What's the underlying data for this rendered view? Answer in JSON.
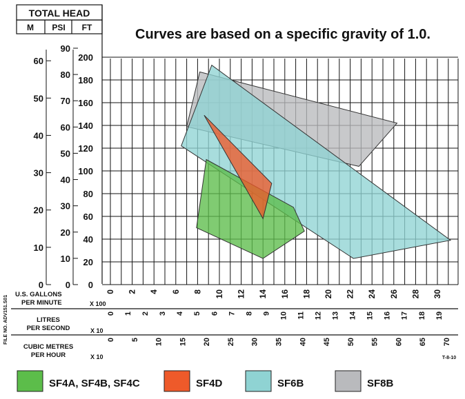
{
  "header": {
    "total_head": "TOTAL HEAD",
    "col_m": "M",
    "col_psi": "PSI",
    "col_ft": "FT",
    "note": "Curves are based on a specific gravity of 1.0."
  },
  "axes": {
    "m_ticks": [
      "60",
      "50",
      "40",
      "30",
      "20",
      "10",
      "0"
    ],
    "psi_ticks": [
      "90",
      "80",
      "70",
      "60",
      "50",
      "40",
      "30",
      "20",
      "10",
      "0"
    ],
    "ft_ticks": [
      "200",
      "180",
      "160",
      "140",
      "120",
      "100",
      "80",
      "60",
      "40",
      "20",
      "0"
    ],
    "gpm_label_1": "U.S. GALLONS",
    "gpm_label_2": "PER MINUTE",
    "gpm_mult": "X 100",
    "gpm_ticks": [
      "0",
      "2",
      "4",
      "6",
      "8",
      "10",
      "12",
      "14",
      "16",
      "18",
      "20",
      "22",
      "24",
      "26",
      "28",
      "30"
    ],
    "lps_label_1": "LITRES",
    "lps_label_2": "PER SECOND",
    "lps_mult": "X 10",
    "lps_ticks": [
      "0",
      "1",
      "2",
      "3",
      "4",
      "5",
      "6",
      "7",
      "8",
      "9",
      "10",
      "11",
      "12",
      "13",
      "14",
      "15",
      "16",
      "17",
      "18",
      "19"
    ],
    "cmh_label_1": "CUBIC METRES",
    "cmh_label_2": "PER HOUR",
    "cmh_mult": "X 10",
    "cmh_ticks": [
      "0",
      "5",
      "10",
      "15",
      "20",
      "25",
      "30",
      "35",
      "40",
      "45",
      "50",
      "55",
      "60",
      "65",
      "70"
    ]
  },
  "side_text": "FILE NO.   ADV151.S01",
  "corner_code": "T-8-10",
  "legend": [
    {
      "label": "SF4A, SF4B, SF4C",
      "color": "#5cbd4a"
    },
    {
      "label": "SF4D",
      "color": "#ee5a2a"
    },
    {
      "label": "SF6B",
      "color": "#8fd3d3"
    },
    {
      "label": "SF8B",
      "color": "#b9babd"
    }
  ],
  "chart_data": {
    "type": "area",
    "title": "Curves are based on a specific gravity of 1.0.",
    "xlabel": "U.S. GALLONS PER MINUTE X 100",
    "ylabel": "TOTAL HEAD FT",
    "xlim": [
      0,
      32
    ],
    "ylim": [
      0,
      200
    ],
    "grid": true,
    "legend_position": "bottom",
    "series": [
      {
        "name": "SF8B",
        "color": "#b9babd",
        "x": [
          7.0,
          8.2,
          26.3,
          22.8,
          7.0
        ],
        "y": [
          139,
          187,
          142,
          104,
          139
        ]
      },
      {
        "name": "SF6B",
        "color": "#8fd3d3",
        "x": [
          6.5,
          9.3,
          31.2,
          22.3,
          6.5
        ],
        "y": [
          122,
          193,
          39,
          23,
          122
        ]
      },
      {
        "name": "SF4A, SF4B, SF4C",
        "color": "#5cbd4a",
        "x": [
          8.8,
          16.8,
          17.8,
          14.0,
          7.9,
          8.8
        ],
        "y": [
          110,
          68,
          47,
          23,
          50,
          110
        ]
      },
      {
        "name": "SF4D",
        "color": "#ee5a2a",
        "x": [
          8.6,
          14.8,
          14.0,
          8.6
        ],
        "y": [
          149,
          89,
          58,
          149
        ]
      }
    ]
  }
}
